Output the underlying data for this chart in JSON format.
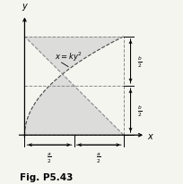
{
  "title": "Fig. P5.43",
  "curve_label": "x = ky^2",
  "a": 1.0,
  "b": 1.0,
  "bg_color": "#f5f5f0",
  "shaded_color": "#d8d8d8",
  "curve_color": "#444444",
  "axis_color": "#000000",
  "dashed_color": "#888888",
  "line_color": "#555555",
  "figsize": [
    2.05,
    2.07
  ],
  "dpi": 100
}
